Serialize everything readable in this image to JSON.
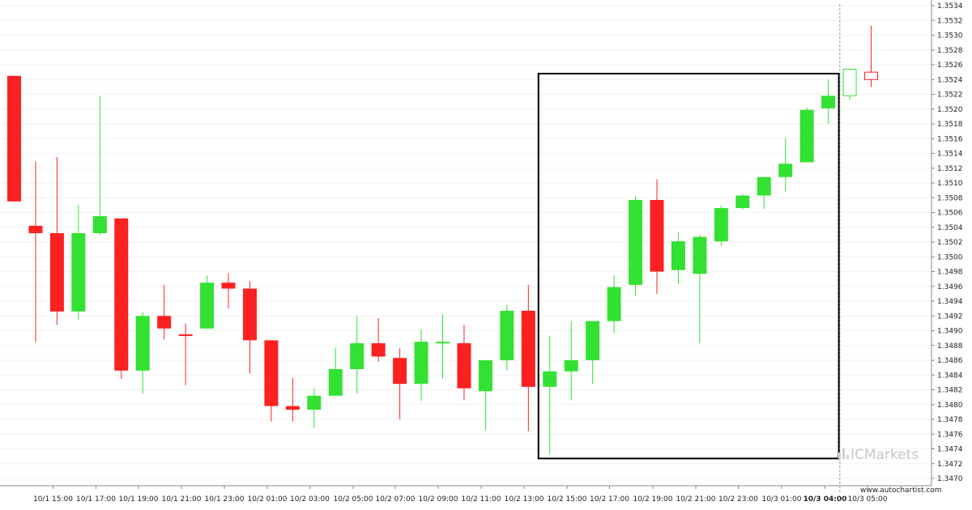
{
  "chart_data": {
    "type": "candlestick",
    "ylim": [
      1.347,
      1.3534
    ],
    "y_ticks": [
      "1.3534",
      "1.3532",
      "1.3530",
      "1.3528",
      "1.3526",
      "1.3524",
      "1.3522",
      "1.3520",
      "1.3518",
      "1.3516",
      "1.3514",
      "1.3512",
      "1.3510",
      "1.3508",
      "1.3506",
      "1.3504",
      "1.3502",
      "1.3500",
      "1.3498",
      "1.3496",
      "1.3494",
      "1.3492",
      "1.3490",
      "1.3488",
      "1.3486",
      "1.3484",
      "1.3482",
      "1.3480",
      "1.3478",
      "1.3476",
      "1.3474",
      "1.3472",
      "1.3470"
    ],
    "x_ticks": [
      {
        "label": "10/1 15:00",
        "bold": false
      },
      {
        "label": "10/1 17:00",
        "bold": false
      },
      {
        "label": "10/1 19:00",
        "bold": false
      },
      {
        "label": "10/1 21:00",
        "bold": false
      },
      {
        "label": "10/1 23:00",
        "bold": false
      },
      {
        "label": "10/2 01:00",
        "bold": false
      },
      {
        "label": "10/2 03:00",
        "bold": false
      },
      {
        "label": "10/2 05:00",
        "bold": false
      },
      {
        "label": "10/2 07:00",
        "bold": false
      },
      {
        "label": "10/2 09:00",
        "bold": false
      },
      {
        "label": "10/2 11:00",
        "bold": false
      },
      {
        "label": "10/2 13:00",
        "bold": false
      },
      {
        "label": "10/2 15:00",
        "bold": false
      },
      {
        "label": "10/2 17:00",
        "bold": false
      },
      {
        "label": "10/2 19:00",
        "bold": false
      },
      {
        "label": "10/2 21:00",
        "bold": false
      },
      {
        "label": "10/2 23:00",
        "bold": false
      },
      {
        "label": "10/3 01:00",
        "bold": false
      },
      {
        "label": "10/3 04:00",
        "bold": true
      },
      {
        "label": "10/3 05:00",
        "bold": false
      }
    ],
    "candles": [
      {
        "o": 1.35245,
        "h": 1.35245,
        "l": 1.35075,
        "c": 1.35075,
        "style": "bear"
      },
      {
        "o": 1.35042,
        "h": 1.35129,
        "l": 1.34885,
        "c": 1.35032,
        "style": "bear"
      },
      {
        "o": 1.35032,
        "h": 1.35135,
        "l": 1.34908,
        "c": 1.34926,
        "style": "bear"
      },
      {
        "o": 1.34926,
        "h": 1.3507,
        "l": 1.34915,
        "c": 1.35032,
        "style": "bull"
      },
      {
        "o": 1.35032,
        "h": 1.35218,
        "l": 1.3503,
        "c": 1.35055,
        "style": "bull"
      },
      {
        "o": 1.35052,
        "h": 1.35052,
        "l": 1.34835,
        "c": 1.34846,
        "style": "bear"
      },
      {
        "o": 1.34846,
        "h": 1.34925,
        "l": 1.34815,
        "c": 1.3492,
        "style": "bull"
      },
      {
        "o": 1.3492,
        "h": 1.34962,
        "l": 1.34888,
        "c": 1.34903,
        "style": "bear"
      },
      {
        "o": 1.34895,
        "h": 1.3491,
        "l": 1.34826,
        "c": 1.34893,
        "style": "bear"
      },
      {
        "o": 1.34903,
        "h": 1.34975,
        "l": 1.34903,
        "c": 1.34965,
        "style": "bull"
      },
      {
        "o": 1.34965,
        "h": 1.34978,
        "l": 1.3493,
        "c": 1.34957,
        "style": "bear"
      },
      {
        "o": 1.34957,
        "h": 1.34967,
        "l": 1.34842,
        "c": 1.34887,
        "style": "bear"
      },
      {
        "o": 1.34887,
        "h": 1.34887,
        "l": 1.34777,
        "c": 1.34798,
        "style": "bear"
      },
      {
        "o": 1.34798,
        "h": 1.34836,
        "l": 1.34777,
        "c": 1.34793,
        "style": "bear"
      },
      {
        "o": 1.34793,
        "h": 1.34822,
        "l": 1.34768,
        "c": 1.34812,
        "style": "bull"
      },
      {
        "o": 1.34812,
        "h": 1.34877,
        "l": 1.34812,
        "c": 1.34848,
        "style": "bull"
      },
      {
        "o": 1.34848,
        "h": 1.3492,
        "l": 1.34815,
        "c": 1.34883,
        "style": "bull"
      },
      {
        "o": 1.34883,
        "h": 1.34917,
        "l": 1.34858,
        "c": 1.34865,
        "style": "bear"
      },
      {
        "o": 1.34863,
        "h": 1.34876,
        "l": 1.3478,
        "c": 1.34828,
        "style": "bear"
      },
      {
        "o": 1.34828,
        "h": 1.34902,
        "l": 1.34805,
        "c": 1.34885,
        "style": "bull"
      },
      {
        "o": 1.34885,
        "h": 1.34922,
        "l": 1.34835,
        "c": 1.34885,
        "style": "bull"
      },
      {
        "o": 1.34883,
        "h": 1.34908,
        "l": 1.34806,
        "c": 1.34822,
        "style": "bear"
      },
      {
        "o": 1.34818,
        "h": 1.3486,
        "l": 1.34765,
        "c": 1.3486,
        "style": "bull"
      },
      {
        "o": 1.3486,
        "h": 1.34935,
        "l": 1.34846,
        "c": 1.34927,
        "style": "bull"
      },
      {
        "o": 1.34927,
        "h": 1.34962,
        "l": 1.34764,
        "c": 1.34824,
        "style": "bear"
      },
      {
        "o": 1.34824,
        "h": 1.34893,
        "l": 1.34733,
        "c": 1.34845,
        "style": "bull"
      },
      {
        "o": 1.34845,
        "h": 1.34913,
        "l": 1.34806,
        "c": 1.3486,
        "style": "bull"
      },
      {
        "o": 1.3486,
        "h": 1.34913,
        "l": 1.34828,
        "c": 1.34913,
        "style": "bull"
      },
      {
        "o": 1.34913,
        "h": 1.34975,
        "l": 1.34897,
        "c": 1.34959,
        "style": "bull"
      },
      {
        "o": 1.34962,
        "h": 1.35082,
        "l": 1.34947,
        "c": 1.35077,
        "style": "bull"
      },
      {
        "o": 1.35077,
        "h": 1.35105,
        "l": 1.3495,
        "c": 1.3498,
        "style": "bear"
      },
      {
        "o": 1.34982,
        "h": 1.35033,
        "l": 1.34963,
        "c": 1.35021,
        "style": "bull"
      },
      {
        "o": 1.34977,
        "h": 1.3503,
        "l": 1.34883,
        "c": 1.35027,
        "style": "bull"
      },
      {
        "o": 1.35021,
        "h": 1.35069,
        "l": 1.35015,
        "c": 1.35066,
        "style": "bull"
      },
      {
        "o": 1.35066,
        "h": 1.35085,
        "l": 1.35064,
        "c": 1.35083,
        "style": "bull"
      },
      {
        "o": 1.35083,
        "h": 1.35108,
        "l": 1.35065,
        "c": 1.35108,
        "style": "bull"
      },
      {
        "o": 1.35108,
        "h": 1.35161,
        "l": 1.35089,
        "c": 1.35126,
        "style": "bull"
      },
      {
        "o": 1.35128,
        "h": 1.35202,
        "l": 1.35128,
        "c": 1.35199,
        "style": "bull"
      },
      {
        "o": 1.35201,
        "h": 1.3524,
        "l": 1.3518,
        "c": 1.35218,
        "style": "bull"
      },
      {
        "o": 1.35218,
        "h": 1.35254,
        "l": 1.35212,
        "c": 1.35254,
        "style": "bull-hollow"
      },
      {
        "o": 1.3525,
        "h": 1.35313,
        "l": 1.3523,
        "c": 1.3524,
        "style": "bear-hollow"
      }
    ],
    "pattern_box": {
      "from_index": 25,
      "to_index": 38,
      "high": 1.35248,
      "low": 1.34727
    },
    "vline_index": 38.5
  },
  "colors": {
    "bull": "#33e133",
    "bear": "#fc2121",
    "box": "#000000",
    "grid": "#f2f2f2",
    "vline": "#999999"
  },
  "watermark": "ICMarkets",
  "credit": "www.autochartist.com"
}
